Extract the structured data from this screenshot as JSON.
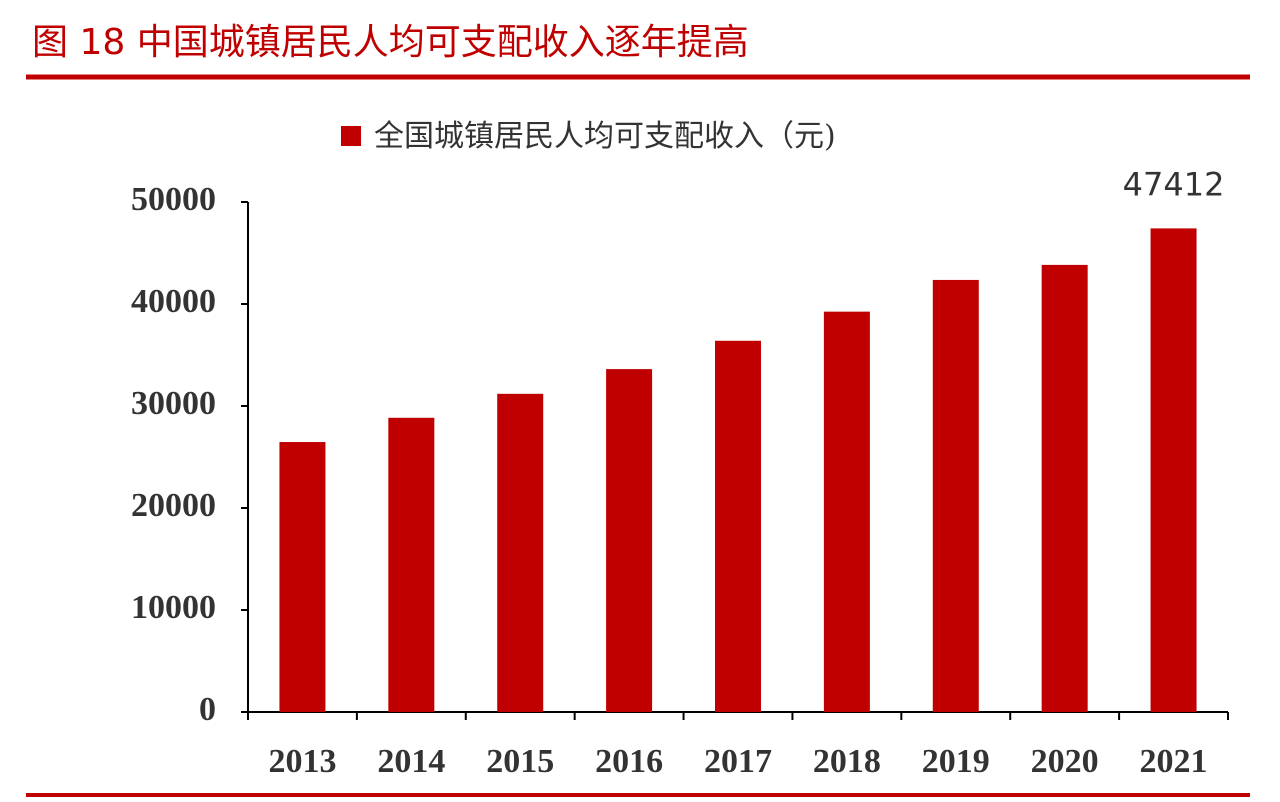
{
  "chart_data": {
    "type": "bar",
    "title": "图 18 中国城镇居民人均可支配收入逐年提高",
    "categories": [
      "2013",
      "2014",
      "2015",
      "2016",
      "2017",
      "2018",
      "2019",
      "2020",
      "2021"
    ],
    "series": [
      {
        "name": "全国城镇居民人均可支配收入（元)",
        "color": "#c00000",
        "values": [
          26467,
          28844,
          31195,
          33616,
          36396,
          39251,
          42359,
          43834,
          47412
        ]
      }
    ],
    "labeled_points": [
      8
    ],
    "ylim": [
      0,
      50000
    ],
    "yticks": [
      0,
      10000,
      20000,
      30000,
      40000,
      50000
    ],
    "grid": false,
    "legend": "top"
  }
}
